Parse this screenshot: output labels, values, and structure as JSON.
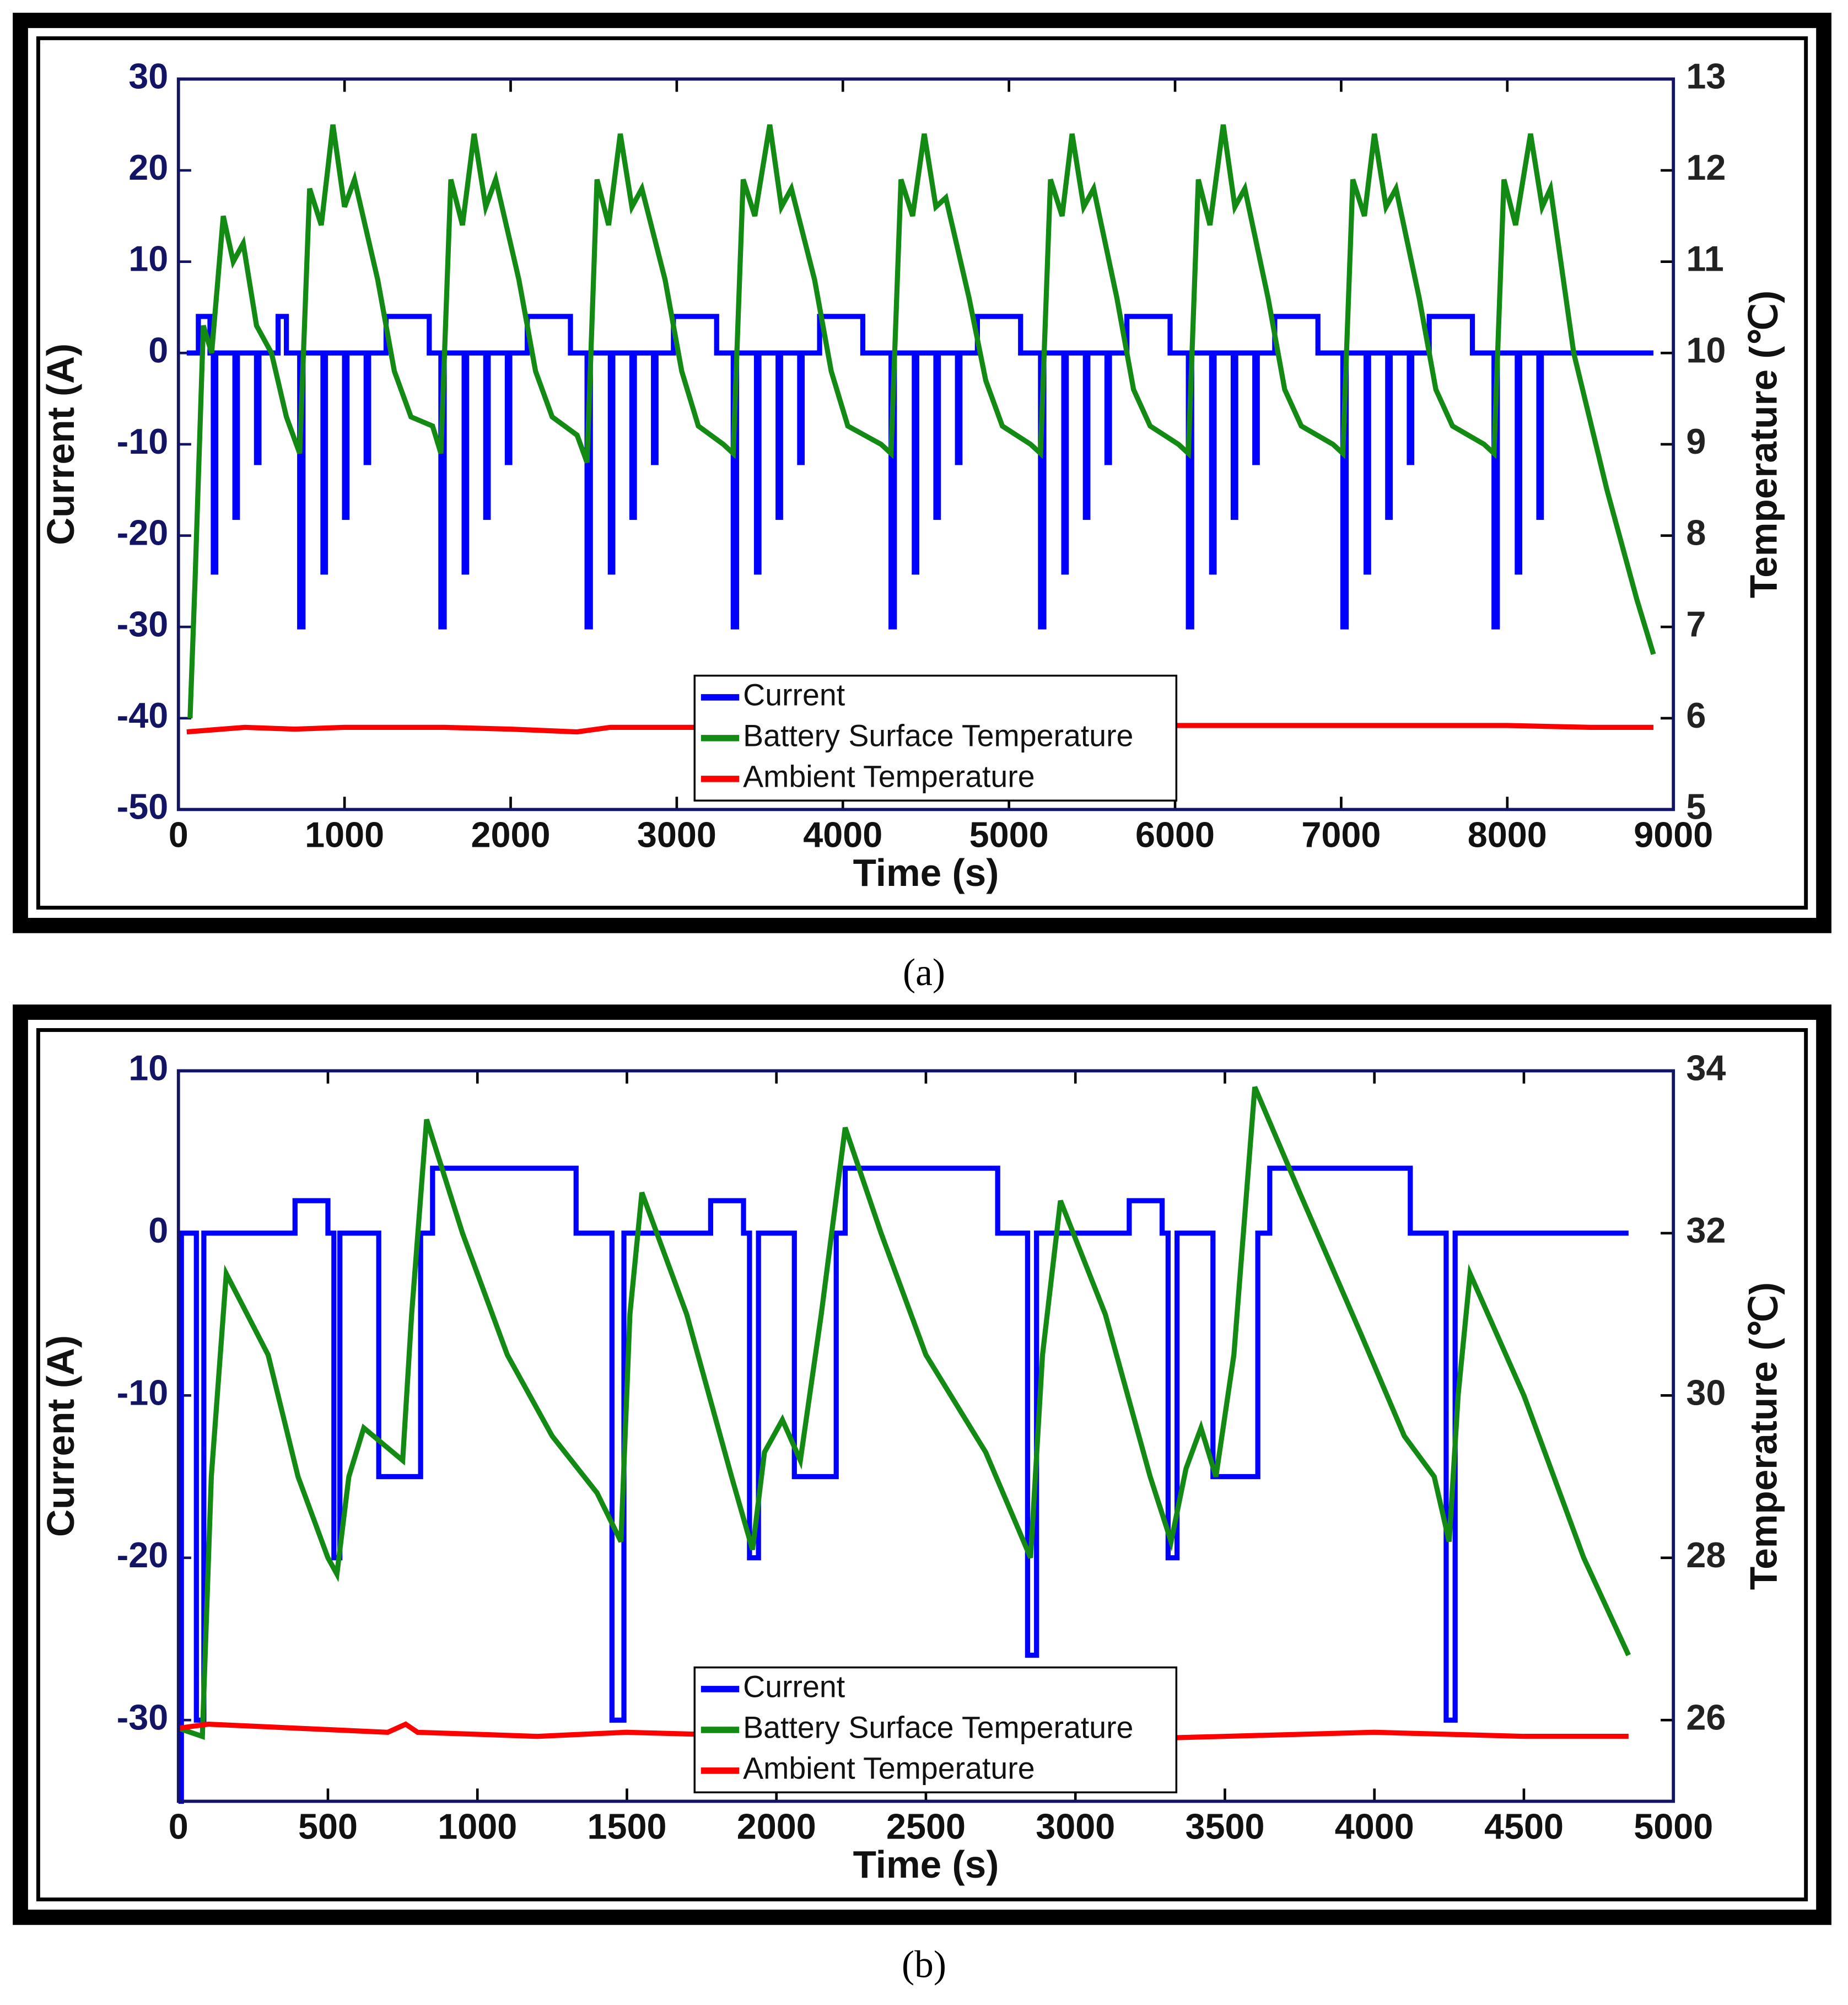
{
  "chart_data": [
    {
      "type": "line",
      "caption": "(a)",
      "xlabel": "Time (s)",
      "ylabel": "Current (A)",
      "y2label": "Temperature (℃)",
      "legend": "lower center",
      "xlim": [
        0,
        9000
      ],
      "xticks": [
        0,
        1000,
        2000,
        3000,
        4000,
        5000,
        6000,
        7000,
        8000,
        9000
      ],
      "ylim": [
        -50,
        30
      ],
      "yticks": [
        -50,
        -40,
        -30,
        -20,
        -10,
        0,
        10,
        20,
        30
      ],
      "y2lim": [
        5,
        13
      ],
      "y2ticks": [
        5,
        6,
        7,
        8,
        9,
        10,
        11,
        12,
        13
      ],
      "series": [
        {
          "name": "Current",
          "color": "#0000ff",
          "axis": "y",
          "x": [
            50,
            120,
            120,
            190,
            190,
            210,
            210,
            225,
            225,
            340,
            340,
            355,
            355,
            470,
            470,
            485,
            485,
            600,
            600,
            650,
            650,
            730,
            730,
            750,
            750,
            870,
            870,
            885,
            885,
            1000,
            1000,
            1015,
            1015,
            1130,
            1130,
            1145,
            1145,
            1250,
            1250,
            1510,
            1510,
            1580,
            1580,
            1600,
            1600,
            1720,
            1720,
            1735,
            1735,
            1850,
            1850,
            1865,
            1865,
            1980,
            1980,
            1995,
            1995,
            2100,
            2100,
            2360,
            2360,
            2460,
            2460,
            2480,
            2480,
            2600,
            2600,
            2615,
            2615,
            2730,
            2730,
            2745,
            2745,
            2860,
            2860,
            2875,
            2875,
            2980,
            2980,
            3240,
            3240,
            3340,
            3340,
            3360,
            3360,
            3480,
            3480,
            3495,
            3495,
            3610,
            3610,
            3625,
            3625,
            3740,
            3740,
            3755,
            3755,
            3860,
            3860,
            4120,
            4120,
            4290,
            4290,
            4310,
            4310,
            4430,
            4430,
            4445,
            4445,
            4560,
            4560,
            4575,
            4575,
            4690,
            4690,
            4705,
            4705,
            4810,
            4810,
            5070,
            5070,
            5190,
            5190,
            5210,
            5210,
            5330,
            5330,
            5345,
            5345,
            5460,
            5460,
            5475,
            5475,
            5590,
            5590,
            5605,
            5605,
            5710,
            5710,
            5970,
            5970,
            6080,
            6080,
            6100,
            6100,
            6220,
            6220,
            6235,
            6235,
            6350,
            6350,
            6365,
            6365,
            6480,
            6480,
            6495,
            6495,
            6600,
            6600,
            6860,
            6860,
            7010,
            7010,
            7030,
            7030,
            7150,
            7150,
            7165,
            7165,
            7280,
            7280,
            7295,
            7295,
            7410,
            7410,
            7425,
            7425,
            7530,
            7530,
            7790,
            7790,
            7920,
            7920,
            7940,
            7940,
            8060,
            8060,
            8075,
            8075,
            8190,
            8190,
            8205,
            8205,
            8880
          ],
          "values": [
            0,
            0,
            4,
            4,
            0,
            0,
            -24,
            -24,
            0,
            0,
            -18,
            -18,
            0,
            0,
            -12,
            -12,
            0,
            0,
            4,
            4,
            0,
            0,
            -30,
            -30,
            0,
            0,
            -24,
            -24,
            0,
            0,
            -18,
            -18,
            0,
            0,
            -12,
            -12,
            0,
            0,
            4,
            4,
            0,
            0,
            -30,
            -30,
            0,
            0,
            -24,
            -24,
            0,
            0,
            -18,
            -18,
            0,
            0,
            -12,
            -12,
            0,
            0,
            4,
            4,
            0,
            0,
            -30,
            -30,
            0,
            0,
            -24,
            -24,
            0,
            0,
            -18,
            -18,
            0,
            0,
            -12,
            -12,
            0,
            0,
            4,
            4,
            0,
            0,
            -30,
            -30,
            0,
            0,
            -24,
            -24,
            0,
            0,
            -18,
            -18,
            0,
            0,
            -12,
            -12,
            0,
            0,
            4,
            4,
            0,
            0,
            -30,
            -30,
            0,
            0,
            -24,
            -24,
            0,
            0,
            -18,
            -18,
            0,
            0,
            -12,
            -12,
            0,
            0,
            4,
            4,
            0,
            0,
            -30,
            -30,
            0,
            0,
            -24,
            -24,
            0,
            0,
            -18,
            -18,
            0,
            0,
            -12,
            -12,
            0,
            0,
            4,
            4,
            0,
            0,
            -30,
            -30,
            0,
            0,
            -24,
            -24,
            0,
            0,
            -18,
            -18,
            0,
            0,
            -12,
            -12,
            0,
            0,
            4,
            4,
            0,
            0,
            -30,
            -30,
            0,
            0,
            -24,
            -24,
            0,
            0,
            -18,
            -18,
            0,
            0,
            -12,
            -12,
            0,
            0,
            4,
            4,
            0,
            0,
            -30,
            -30,
            0,
            0,
            -24,
            -24,
            0,
            0,
            -18,
            -18,
            0,
            0
          ]
        },
        {
          "name": "Battery Surface Temperature",
          "color": "#138a13",
          "axis": "y2",
          "x": [
            70,
            100,
            150,
            200,
            270,
            330,
            390,
            470,
            560,
            650,
            730,
            790,
            860,
            930,
            1000,
            1060,
            1200,
            1300,
            1400,
            1530,
            1580,
            1640,
            1710,
            1780,
            1850,
            1910,
            2050,
            2150,
            2250,
            2400,
            2460,
            2520,
            2590,
            2660,
            2730,
            2790,
            2930,
            3030,
            3130,
            3280,
            3340,
            3400,
            3470,
            3560,
            3630,
            3690,
            3830,
            3930,
            4030,
            4230,
            4290,
            4350,
            4420,
            4490,
            4560,
            4620,
            4760,
            4860,
            4960,
            5130,
            5190,
            5250,
            5320,
            5380,
            5450,
            5510,
            5650,
            5750,
            5850,
            6020,
            6080,
            6140,
            6210,
            6290,
            6360,
            6420,
            6560,
            6660,
            6760,
            6950,
            7010,
            7070,
            7140,
            7200,
            7270,
            7330,
            7470,
            7570,
            7670,
            7860,
            7920,
            7980,
            8050,
            8140,
            8210,
            8260,
            8400,
            8600,
            8780,
            8880
          ],
          "values": [
            6,
            7.5,
            10.3,
            10,
            11.5,
            11,
            11.2,
            10.3,
            10,
            9.3,
            8.9,
            11.8,
            11.4,
            12.5,
            11.6,
            11.9,
            10.8,
            9.8,
            9.3,
            9.2,
            8.9,
            11.9,
            11.4,
            12.4,
            11.6,
            11.9,
            10.8,
            9.8,
            9.3,
            9.1,
            8.8,
            11.9,
            11.4,
            12.4,
            11.6,
            11.8,
            10.8,
            9.8,
            9.2,
            9.0,
            8.9,
            11.9,
            11.5,
            12.5,
            11.6,
            11.8,
            10.8,
            9.8,
            9.2,
            9.0,
            8.9,
            11.9,
            11.5,
            12.4,
            11.6,
            11.7,
            10.6,
            9.7,
            9.2,
            9.0,
            8.9,
            11.9,
            11.5,
            12.4,
            11.6,
            11.8,
            10.6,
            9.6,
            9.2,
            9.0,
            8.9,
            11.9,
            11.4,
            12.5,
            11.6,
            11.8,
            10.6,
            9.6,
            9.2,
            9.0,
            8.9,
            11.9,
            11.5,
            12.4,
            11.6,
            11.8,
            10.6,
            9.6,
            9.2,
            9.0,
            8.9,
            11.9,
            11.4,
            12.4,
            11.6,
            11.8,
            10.0,
            8.5,
            7.3,
            6.7
          ]
        },
        {
          "name": "Ambient Temperature",
          "color": "#ff0000",
          "axis": "y2",
          "x": [
            50,
            400,
            700,
            1000,
            1300,
            1600,
            2000,
            2400,
            2600,
            3000,
            3500,
            4000,
            4500,
            5000,
            5500,
            6000,
            6500,
            7000,
            7500,
            8000,
            8500,
            8880
          ],
          "values": [
            5.85,
            5.9,
            5.88,
            5.9,
            5.9,
            5.9,
            5.88,
            5.85,
            5.9,
            5.9,
            5.9,
            5.9,
            5.9,
            5.9,
            5.9,
            5.92,
            5.92,
            5.92,
            5.92,
            5.92,
            5.9,
            5.9
          ]
        }
      ]
    },
    {
      "type": "line",
      "caption": "(b)",
      "xlabel": "Time (s)",
      "ylabel": "Current (A)",
      "y2label": "Temperature (℃)",
      "legend": "lower center",
      "xlim": [
        0,
        5000
      ],
      "xticks": [
        0,
        500,
        1000,
        1500,
        2000,
        2500,
        3000,
        3500,
        4000,
        4500,
        5000
      ],
      "ylim": [
        -35,
        10
      ],
      "yticks": [
        -30,
        -20,
        -10,
        0,
        10
      ],
      "y2lim": [
        25,
        34
      ],
      "y2ticks": [
        26,
        28,
        30,
        32,
        34
      ],
      "series": [
        {
          "name": "Current",
          "color": "#0000ff",
          "axis": "y",
          "x": [
            0,
            10,
            10,
            60,
            60,
            85,
            85,
            390,
            390,
            500,
            500,
            520,
            520,
            540,
            540,
            670,
            670,
            810,
            810,
            850,
            850,
            1330,
            1330,
            1450,
            1450,
            1490,
            1490,
            1780,
            1780,
            1890,
            1890,
            1910,
            1910,
            1940,
            1940,
            2060,
            2060,
            2200,
            2200,
            2230,
            2230,
            2740,
            2740,
            2840,
            2840,
            2870,
            2870,
            3180,
            3180,
            3290,
            3290,
            3310,
            3310,
            3340,
            3340,
            3460,
            3460,
            3610,
            3610,
            3650,
            3650,
            4120,
            4120,
            4240,
            4240,
            4270,
            4270,
            4850
          ],
          "values": [
            -35,
            -35,
            0,
            0,
            -30,
            -30,
            0,
            0,
            2,
            2,
            0,
            0,
            -20,
            -20,
            0,
            0,
            -15,
            -15,
            0,
            0,
            4,
            4,
            0,
            0,
            -30,
            -30,
            0,
            0,
            2,
            2,
            0,
            0,
            -20,
            -20,
            0,
            0,
            -15,
            -15,
            0,
            0,
            4,
            4,
            0,
            0,
            -26,
            -26,
            0,
            0,
            2,
            2,
            0,
            0,
            -20,
            -20,
            0,
            0,
            -15,
            -15,
            0,
            0,
            4,
            4,
            0,
            0,
            -30,
            -30,
            0,
            0
          ]
        },
        {
          "name": "Battery Surface Temperature",
          "color": "#138a13",
          "axis": "y2",
          "x": [
            0,
            80,
            110,
            160,
            300,
            400,
            500,
            530,
            570,
            620,
            750,
            780,
            830,
            950,
            1100,
            1250,
            1400,
            1480,
            1510,
            1550,
            1700,
            1850,
            1920,
            1960,
            2020,
            2080,
            2150,
            2230,
            2350,
            2500,
            2700,
            2850,
            2890,
            2950,
            3100,
            3250,
            3320,
            3370,
            3420,
            3470,
            3530,
            3600,
            3750,
            3950,
            4100,
            4200,
            4250,
            4280,
            4320,
            4500,
            4700,
            4850
          ],
          "values": [
            25.9,
            25.8,
            29,
            31.5,
            30.5,
            29,
            28,
            27.8,
            29,
            29.6,
            29.2,
            31,
            33.4,
            32,
            30.5,
            29.5,
            28.8,
            28.2,
            31,
            32.5,
            31,
            29,
            28.1,
            29.3,
            29.7,
            29.2,
            31,
            33.3,
            32,
            30.5,
            29.3,
            28,
            30.5,
            32.4,
            31,
            29,
            28.2,
            29.1,
            29.6,
            29,
            30.5,
            33.8,
            32.5,
            30.8,
            29.5,
            29,
            28.2,
            30,
            31.5,
            30,
            28,
            26.8
          ]
        },
        {
          "name": "Ambient Temperature",
          "color": "#ff0000",
          "axis": "y2",
          "x": [
            0,
            100,
            400,
            700,
            760,
            800,
            1200,
            1500,
            2000,
            2500,
            3000,
            3500,
            4000,
            4500,
            4850
          ],
          "values": [
            25.9,
            25.95,
            25.9,
            25.85,
            25.95,
            25.85,
            25.8,
            25.85,
            25.8,
            25.8,
            25.75,
            25.8,
            25.85,
            25.8,
            25.8
          ]
        }
      ]
    }
  ]
}
